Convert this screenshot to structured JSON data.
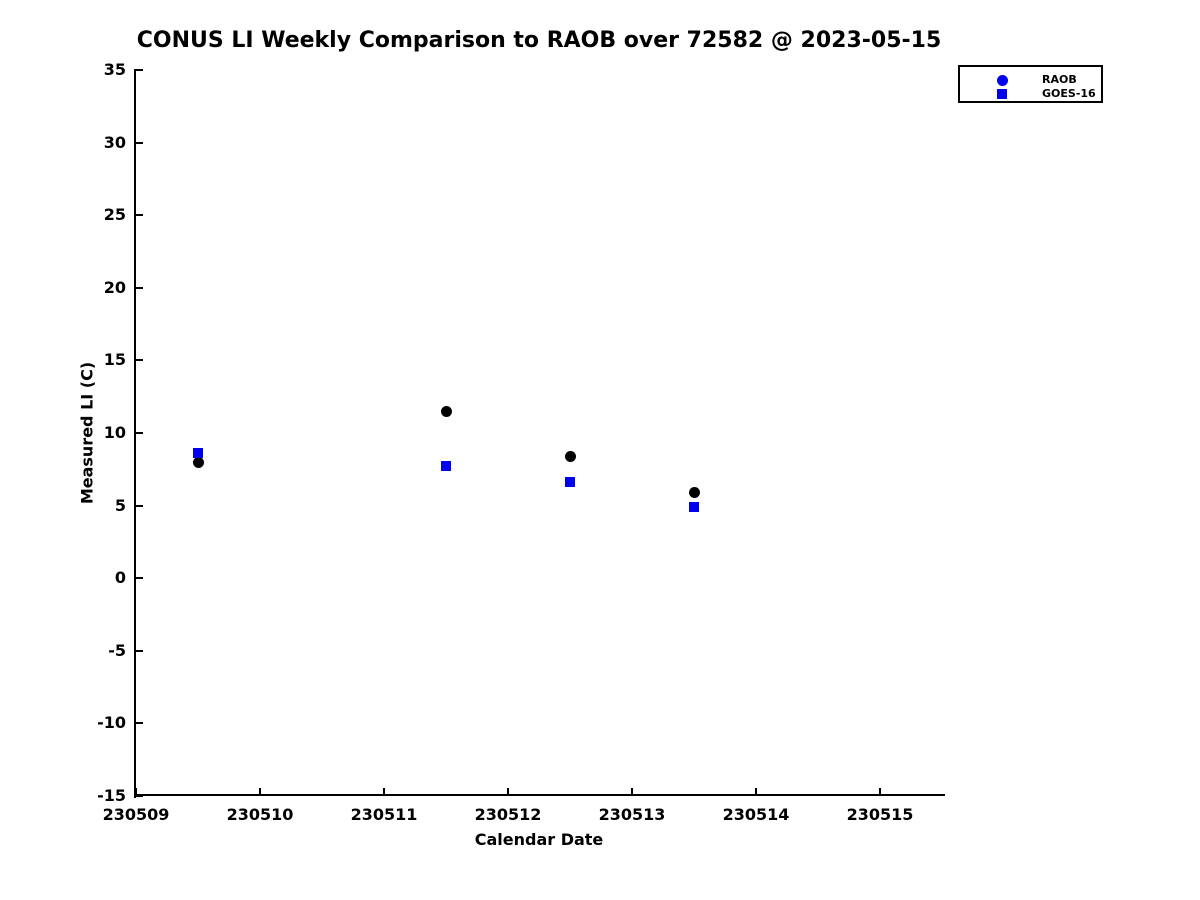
{
  "figure": {
    "background_color": "#ffffff",
    "text_color": "#000000"
  },
  "chart_data": {
    "type": "scatter",
    "title": "CONUS LI Weekly Comparison to RAOB over 72582 @ 2023-05-15",
    "xlabel": "Calendar Date",
    "ylabel": "Measured LI (C)",
    "xlim": [
      230509,
      230515.5
    ],
    "ylim": [
      -15,
      35
    ],
    "xticks": [
      230509,
      230510,
      230511,
      230512,
      230513,
      230514,
      230515
    ],
    "yticks": [
      35,
      30,
      25,
      20,
      15,
      10,
      5,
      0,
      -5,
      -10,
      -15
    ],
    "grid": false,
    "legend": {
      "position": "top-right",
      "border_color": "#000000",
      "background_color": "#ffffff"
    },
    "series": [
      {
        "name": "RAOB",
        "marker": "circle",
        "plot_color": "#000000",
        "legend_color": "#0000ee",
        "x": [
          230509.5,
          230511.5,
          230512.5,
          230513.5
        ],
        "y": [
          8.0,
          11.5,
          8.4,
          5.9
        ]
      },
      {
        "name": "GOES-16",
        "marker": "square",
        "plot_color": "#0000ee",
        "legend_color": "#0000ee",
        "x": [
          230509.5,
          230511.5,
          230512.5,
          230513.5
        ],
        "y": [
          8.6,
          7.7,
          6.6,
          4.9
        ]
      }
    ]
  }
}
